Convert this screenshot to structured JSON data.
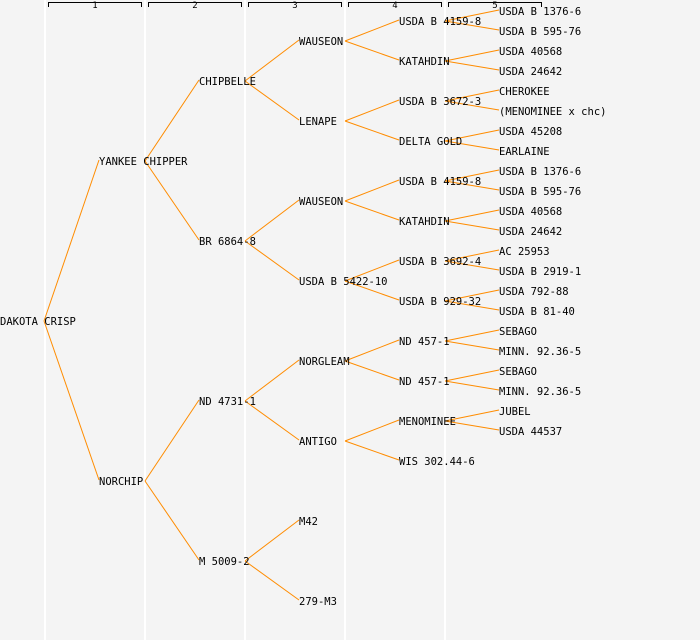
{
  "generations": [
    "1",
    "2",
    "3",
    "4",
    "5"
  ],
  "colors": {
    "link": "#ff8c00",
    "background": "#f4f4f4"
  },
  "tree": {
    "name": "DAKOTA CRISP",
    "children": [
      {
        "name": "YANKEE CHIPPER",
        "children": [
          {
            "name": "CHIPBELLE",
            "children": [
              {
                "name": "WAUSEON",
                "children": [
                  {
                    "name": "USDA B 4159-8",
                    "children": [
                      {
                        "name": "USDA B 1376-6"
                      },
                      {
                        "name": "USDA B 595-76"
                      }
                    ]
                  },
                  {
                    "name": "KATAHDIN",
                    "children": [
                      {
                        "name": "USDA 40568"
                      },
                      {
                        "name": "USDA 24642"
                      }
                    ]
                  }
                ]
              },
              {
                "name": "LENAPE",
                "children": [
                  {
                    "name": "USDA B 3672-3",
                    "children": [
                      {
                        "name": "CHEROKEE"
                      },
                      {
                        "name": "(MENOMINEE x chc)"
                      }
                    ]
                  },
                  {
                    "name": "DELTA GOLD",
                    "children": [
                      {
                        "name": "USDA 45208"
                      },
                      {
                        "name": "EARLAINE"
                      }
                    ]
                  }
                ]
              }
            ]
          },
          {
            "name": "BR 6864-8",
            "children": [
              {
                "name": "WAUSEON",
                "children": [
                  {
                    "name": "USDA B 4159-8",
                    "children": [
                      {
                        "name": "USDA B 1376-6"
                      },
                      {
                        "name": "USDA B 595-76"
                      }
                    ]
                  },
                  {
                    "name": "KATAHDIN",
                    "children": [
                      {
                        "name": "USDA 40568"
                      },
                      {
                        "name": "USDA 24642"
                      }
                    ]
                  }
                ]
              },
              {
                "name": "USDA B 5422-10",
                "children": [
                  {
                    "name": "USDA B 3692-4",
                    "children": [
                      {
                        "name": "AC 25953"
                      },
                      {
                        "name": "USDA B 2919-1"
                      }
                    ]
                  },
                  {
                    "name": "USDA B 929-32",
                    "children": [
                      {
                        "name": "USDA 792-88"
                      },
                      {
                        "name": "USDA B 81-40"
                      }
                    ]
                  }
                ]
              }
            ]
          }
        ]
      },
      {
        "name": "NORCHIP",
        "children": [
          {
            "name": "ND 4731-1",
            "children": [
              {
                "name": "NORGLEAM",
                "children": [
                  {
                    "name": "ND 457-1",
                    "children": [
                      {
                        "name": "SEBAGO"
                      },
                      {
                        "name": "MINN. 92.36-5"
                      }
                    ]
                  },
                  {
                    "name": "ND 457-1",
                    "children": [
                      {
                        "name": "SEBAGO"
                      },
                      {
                        "name": "MINN. 92.36-5"
                      }
                    ]
                  }
                ]
              },
              {
                "name": "ANTIGO",
                "children": [
                  {
                    "name": "MENOMINEE",
                    "children": [
                      {
                        "name": "JUBEL"
                      },
                      {
                        "name": "USDA 44537"
                      }
                    ]
                  },
                  {
                    "name": "WIS 302.44-6"
                  }
                ]
              }
            ]
          },
          {
            "name": "M 5009-2",
            "children": [
              {
                "name": "M42"
              },
              {
                "name": "279-M3"
              }
            ]
          }
        ]
      }
    ]
  }
}
